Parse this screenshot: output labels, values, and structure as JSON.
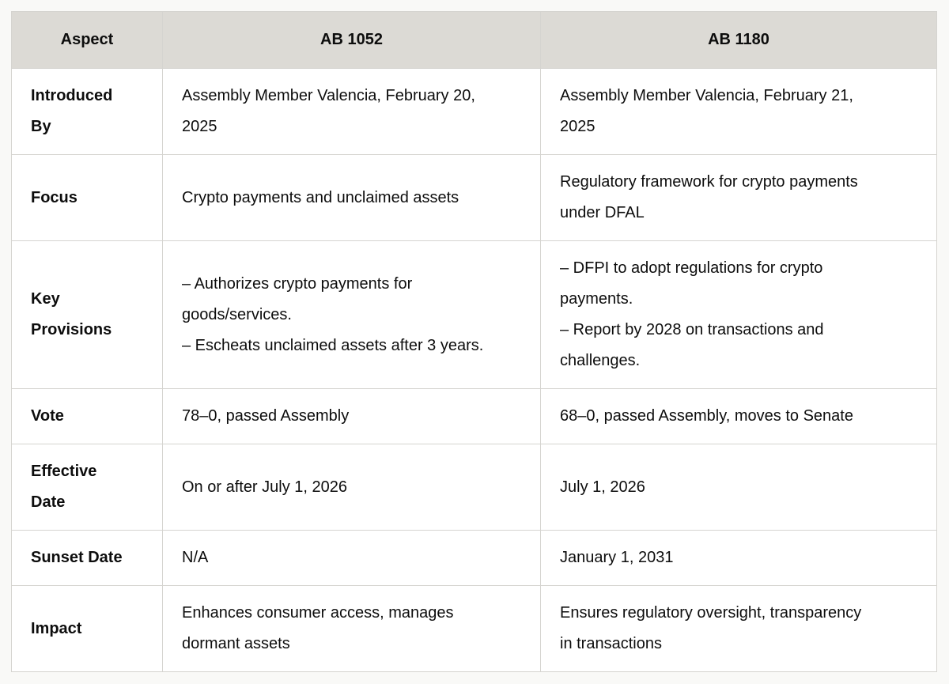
{
  "colors": {
    "page_background": "#f9f9f7",
    "header_background": "#dcdad5",
    "border": "#d5d4d0",
    "text": "#0d0d0d"
  },
  "table": {
    "header": [
      "Aspect",
      "AB 1052",
      "AB 1180"
    ],
    "rows": [
      {
        "label": "Introduced By",
        "ab_1052": "Assembly Member Valencia, February 20, 2025",
        "ab_1180": "Assembly Member Valencia, February 21, 2025"
      },
      {
        "label": "Focus",
        "ab_1052": "Crypto payments and unclaimed assets",
        "ab_1180": "Regulatory framework for crypto payments under DFAL"
      },
      {
        "label": "Key Provisions",
        "ab_1052": "– Authorizes crypto payments for goods/services.\n– Escheats unclaimed assets after 3 years.",
        "ab_1180": "– DFPI to adopt regulations for crypto payments.\n– Report by 2028 on transactions and challenges."
      },
      {
        "label": "Vote",
        "ab_1052": "78–0, passed Assembly",
        "ab_1180": "68–0, passed Assembly, moves to Senate"
      },
      {
        "label": "Effective Date",
        "ab_1052": "On or after July 1, 2026",
        "ab_1180": "July 1, 2026"
      },
      {
        "label": "Sunset Date",
        "ab_1052": "N/A",
        "ab_1180": "January 1, 2031"
      },
      {
        "label": "Impact",
        "ab_1052": "Enhances consumer access, manages dormant assets",
        "ab_1180": "Ensures regulatory oversight, transparency in transactions"
      }
    ]
  }
}
